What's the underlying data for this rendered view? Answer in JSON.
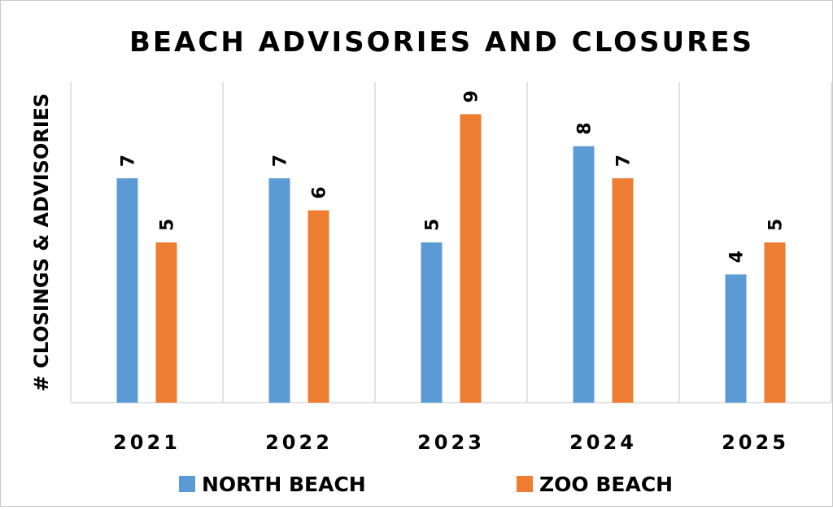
{
  "chart_data": {
    "type": "bar",
    "title": "BEACH ADVISORIES AND CLOSURES",
    "xlabel": "",
    "ylabel": "# CLOSINGS & ADVISORIES",
    "categories": [
      "2021",
      "2022",
      "2023",
      "2024",
      "2025"
    ],
    "series": [
      {
        "name": "NORTH BEACH",
        "color": "#5b9bd5",
        "values": [
          7,
          7,
          5,
          8,
          4
        ]
      },
      {
        "name": "ZOO BEACH",
        "color": "#ed7d31",
        "values": [
          5,
          6,
          9,
          7,
          5
        ]
      }
    ],
    "ylim": [
      0,
      10
    ],
    "grid": "vertical category separators",
    "data_labels": true,
    "legend_position": "bottom"
  }
}
